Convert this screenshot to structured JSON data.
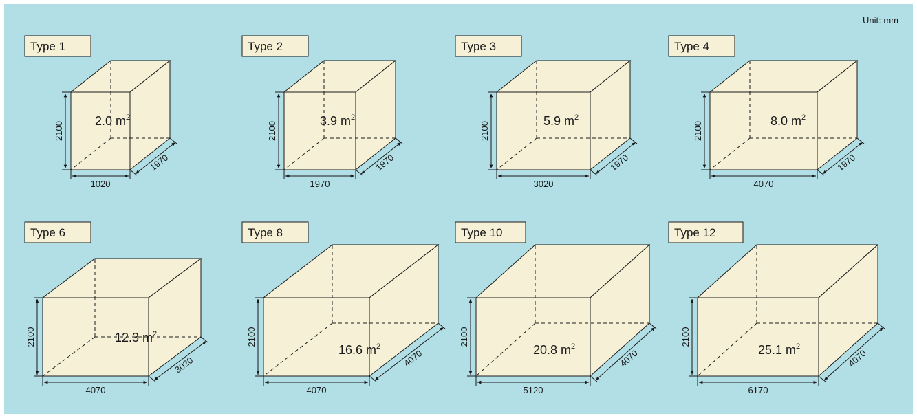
{
  "unit_label": "Unit: mm",
  "colors": {
    "background": "#b2dfe6",
    "box_face": "#f6f1d6",
    "line": "#1a1a1a"
  },
  "boxes": [
    {
      "type_label": "Type 1",
      "area": "2.0 m",
      "area_sup": "2",
      "height": "2100",
      "width": "1020",
      "depth": "1970"
    },
    {
      "type_label": "Type 2",
      "area": "3.9 m",
      "area_sup": "2",
      "height": "2100",
      "width": "1970",
      "depth": "1970"
    },
    {
      "type_label": "Type 3",
      "area": "5.9 m",
      "area_sup": "2",
      "height": "2100",
      "width": "3020",
      "depth": "1970"
    },
    {
      "type_label": "Type 4",
      "area": "8.0 m",
      "area_sup": "2",
      "height": "2100",
      "width": "4070",
      "depth": "1970"
    },
    {
      "type_label": "Type 6",
      "area": "12.3 m",
      "area_sup": "2",
      "height": "2100",
      "width": "4070",
      "depth": "3020"
    },
    {
      "type_label": "Type 8",
      "area": "16.6 m",
      "area_sup": "2",
      "height": "2100",
      "width": "4070",
      "depth": "4070"
    },
    {
      "type_label": "Type 10",
      "area": "20.8 m",
      "area_sup": "2",
      "height": "2100",
      "width": "5120",
      "depth": "4070"
    },
    {
      "type_label": "Type 12",
      "area": "25.1 m",
      "area_sup": "2",
      "height": "2100",
      "width": "6170",
      "depth": "4070"
    }
  ]
}
